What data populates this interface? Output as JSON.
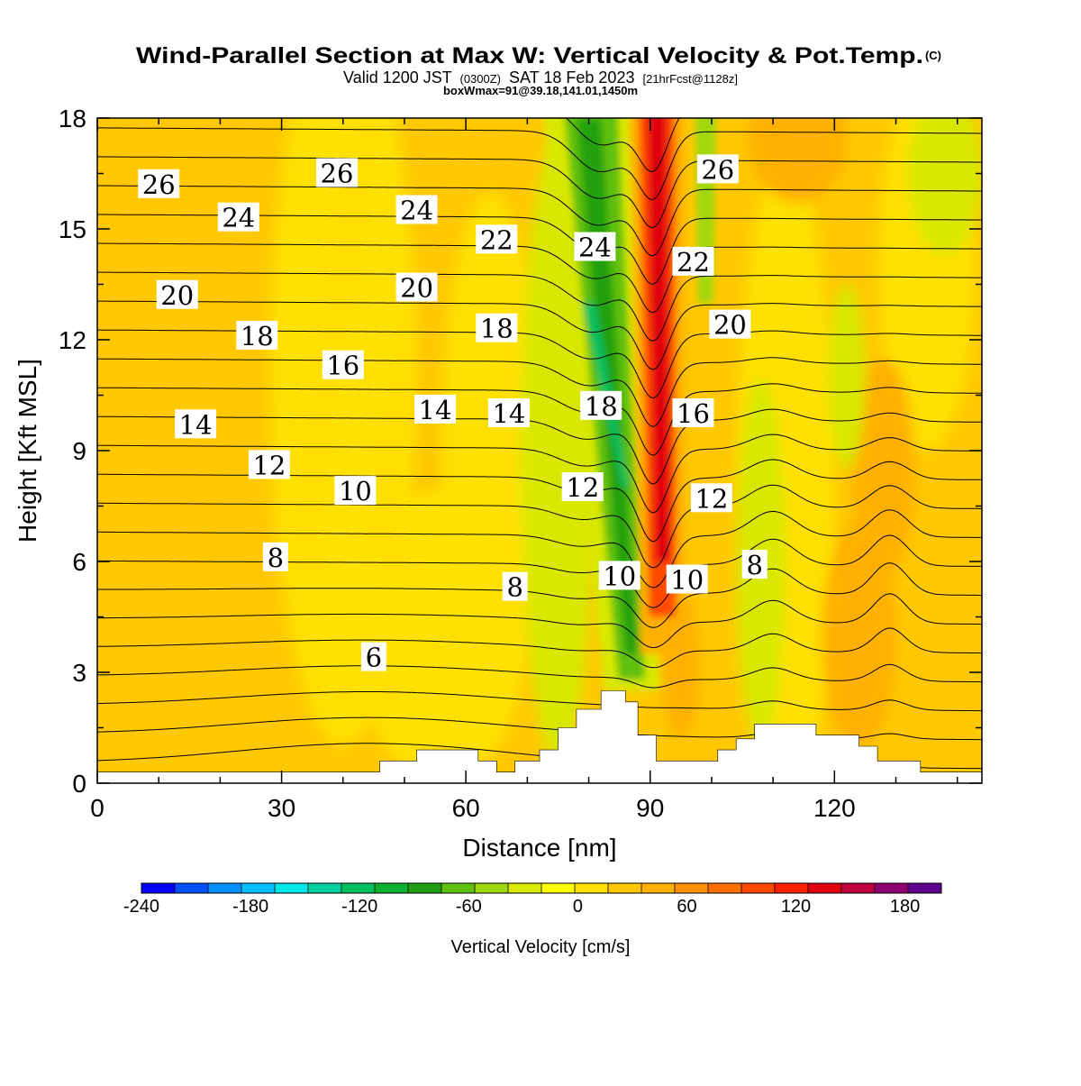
{
  "chart_data": {
    "type": "heatmap",
    "title": "Wind-Parallel Section at Max W: Vertical Velocity & Pot.Temp.",
    "title_mark": "(C)",
    "subtitle": {
      "valid_prefix": "Valid 1200 JST",
      "utc": "(0300Z)",
      "date": "SAT 18 Feb 2023",
      "forecast": "[21hrFcst@1128z]"
    },
    "box_info": "boxWmax=91@39.18,141.01,1450m",
    "xlabel": "Distance [nm]",
    "ylabel": "Height [Kft MSL]",
    "xlim": [
      0,
      144
    ],
    "ylim": [
      0,
      18
    ],
    "x_ticks": [
      "0",
      "30",
      "60",
      "90",
      "120"
    ],
    "y_ticks": [
      "0",
      "3",
      "6",
      "9",
      "12",
      "15",
      "18"
    ],
    "colorbar": {
      "label": "Vertical Velocity [cm/s]",
      "range": [
        -240,
        200
      ],
      "tick_labels": [
        "-240",
        "-180",
        "-120",
        "-60",
        "0",
        "60",
        "120",
        "180"
      ],
      "colors": [
        "#0000ff",
        "#0050ff",
        "#0090ff",
        "#00c0ff",
        "#00e8e8",
        "#00d0a0",
        "#00c060",
        "#10b030",
        "#20a010",
        "#60c010",
        "#a0d810",
        "#d8e800",
        "#ffff00",
        "#ffe000",
        "#ffc800",
        "#ffb000",
        "#ff9000",
        "#ff7000",
        "#ff4800",
        "#ff2000",
        "#e00010",
        "#c00040",
        "#900070",
        "#600090"
      ]
    },
    "velocity_features": [
      {
        "name": "downdraft",
        "value": -90,
        "x_bottom": 87,
        "x_top": 80,
        "z_bottom": 2.5,
        "z_top": 18
      },
      {
        "name": "updraft",
        "value": 130,
        "x_bottom": 92,
        "x_top": 91,
        "z_bottom": 3.5,
        "z_top": 18
      }
    ],
    "terrain": {
      "x": [
        0,
        46,
        46,
        52,
        52,
        62,
        62,
        65,
        65,
        68,
        68,
        72,
        72,
        75,
        75,
        78,
        78,
        82,
        82,
        86,
        86,
        88,
        88,
        91,
        91,
        94,
        94,
        101,
        101,
        104,
        104,
        107,
        107,
        117,
        117,
        124,
        124,
        127,
        127,
        131,
        131,
        134,
        134,
        144
      ],
      "z": [
        0.3,
        0.3,
        0.6,
        0.6,
        0.9,
        0.9,
        0.6,
        0.6,
        0.3,
        0.3,
        0.6,
        0.6,
        0.9,
        0.9,
        1.5,
        1.5,
        2.0,
        2.0,
        2.5,
        2.5,
        2.2,
        2.2,
        1.3,
        1.3,
        0.6,
        0.6,
        0.6,
        0.6,
        0.9,
        0.9,
        1.2,
        1.2,
        1.6,
        1.6,
        1.3,
        1.3,
        1.0,
        1.0,
        0.6,
        0.6,
        0.6,
        0.6,
        0.3,
        0.3
      ]
    },
    "isentrope_labels": [
      {
        "text": "26",
        "x": 10,
        "z": 16.2
      },
      {
        "text": "26",
        "x": 39,
        "z": 16.5
      },
      {
        "text": "26",
        "x": 101,
        "z": 16.6
      },
      {
        "text": "24",
        "x": 23,
        "z": 15.3
      },
      {
        "text": "24",
        "x": 52,
        "z": 15.5
      },
      {
        "text": "24",
        "x": 81,
        "z": 14.5
      },
      {
        "text": "22",
        "x": 65,
        "z": 14.7
      },
      {
        "text": "22",
        "x": 97,
        "z": 14.1
      },
      {
        "text": "20",
        "x": 13,
        "z": 13.2
      },
      {
        "text": "20",
        "x": 52,
        "z": 13.4
      },
      {
        "text": "20",
        "x": 103,
        "z": 12.4
      },
      {
        "text": "18",
        "x": 26,
        "z": 12.1
      },
      {
        "text": "18",
        "x": 65,
        "z": 12.3
      },
      {
        "text": "18",
        "x": 82,
        "z": 10.2
      },
      {
        "text": "16",
        "x": 40,
        "z": 11.3
      },
      {
        "text": "16",
        "x": 97,
        "z": 10.0
      },
      {
        "text": "14",
        "x": 16,
        "z": 9.7
      },
      {
        "text": "14",
        "x": 55,
        "z": 10.1
      },
      {
        "text": "14",
        "x": 67,
        "z": 10.0
      },
      {
        "text": "12",
        "x": 28,
        "z": 8.6
      },
      {
        "text": "12",
        "x": 79,
        "z": 8.0
      },
      {
        "text": "12",
        "x": 100,
        "z": 7.7
      },
      {
        "text": "10",
        "x": 42,
        "z": 7.9
      },
      {
        "text": "10",
        "x": 85,
        "z": 5.6
      },
      {
        "text": "10",
        "x": 96,
        "z": 5.5
      },
      {
        "text": "8",
        "x": 29,
        "z": 6.1
      },
      {
        "text": "8",
        "x": 68,
        "z": 5.3
      },
      {
        "text": "8",
        "x": 107,
        "z": 5.9
      },
      {
        "text": "6",
        "x": 45,
        "z": 3.4
      }
    ]
  }
}
